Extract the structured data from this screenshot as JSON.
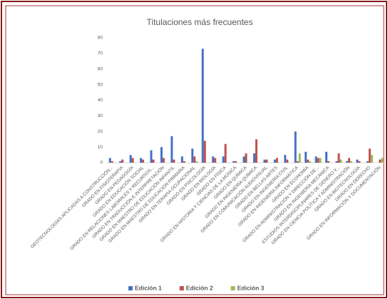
{
  "chart_data": {
    "type": "bar",
    "title": "Titulaciones más frecuentes",
    "categories": [
      "GEOTECNOLOGÍAS APLICADAS A CONSTRUCCIÓN...",
      "GRADO EN FISIOTERAPIA",
      "GRADO EN PEDAGOGÍA",
      "GRADO EN EDUCACIÓN SOCIAL",
      "GRADO EN RELACIONES LABORALES Y RECURSOS...",
      "GRADO EN TRADUCCIÓN E INTERPRETACIÓN",
      "GRADO EN MAESTRO DE EDUCACIÓN INFANTIL",
      "GRADO EN MAESTRO DE EDUCACIÓN PRIMARIA",
      "GRADO EN TERAPIA OCUPACIONAL",
      "GRADO EN PSICOLOGÍA",
      "GRADO EN BIOLOGÍA",
      "GRADO EN FÍSICA",
      "GRADO EN HISTORIA Y CIENCIAS DE LA MÚSICA",
      "GRADO EN QUÍMICA",
      "GRADO EN INGENIERÍA QUÍMICA",
      "GRADO EN COMUNICACIÓN AUDIOVISUAL",
      "GRADO EN BELLAS ARTES",
      "GRADO EN INGENIERÍA CIVIL",
      "GRADO EN INGENIERÍA INFORMÁTICA",
      "GRADO EN ECONOMÍA",
      "GRADO EN ADMINISTRACIÓN Y DIRECCIÓN DE...",
      "GRADO EN INGENIERÍA MECÁNICA",
      "ESTUDIOS INTERDISCIPLINARES DE GÉNERO Y...",
      "GRADO EN CIENCIA POLÍTICA Y ADMINISTRACIÓN",
      "GRADO EN BIOTECNOLOGÍA",
      "GRADO EN DERECHO",
      "GRADO EN INFORMACIÓN Y DOCUMENTACIÓN"
    ],
    "series": [
      {
        "name": "Edición 1",
        "color": "#4472c4",
        "values": [
          3,
          1,
          5,
          3,
          8,
          10,
          17,
          4,
          9,
          73,
          4,
          4,
          1,
          4,
          6,
          2,
          2,
          5,
          20,
          7,
          4,
          7,
          1,
          1,
          2,
          1,
          0
        ]
      },
      {
        "name": "Edición 2",
        "color": "#c0504d",
        "values": [
          1,
          2,
          3,
          2,
          2,
          3,
          2,
          1,
          4,
          14,
          3,
          12,
          1,
          6,
          15,
          2,
          3,
          2,
          1,
          2,
          3,
          1,
          6,
          3,
          1,
          9,
          2
        ]
      },
      {
        "name": "Edición 3",
        "color": "#9bbb59",
        "values": [
          0,
          0,
          0,
          0,
          0,
          0,
          0,
          0,
          1,
          0,
          0,
          0,
          0,
          0,
          0,
          0,
          0,
          0,
          6,
          1,
          3,
          0,
          2,
          1,
          0,
          5,
          3
        ]
      }
    ],
    "ylim": [
      0,
      80
    ],
    "yticks": [
      0,
      10,
      20,
      30,
      40,
      50,
      60,
      70,
      80
    ],
    "grid": false,
    "legend": "bottom"
  }
}
